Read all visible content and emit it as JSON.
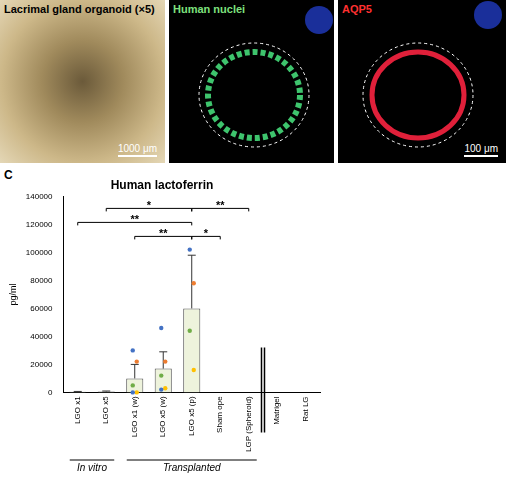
{
  "panels": [
    {
      "title": "Lacrimal gland organoid (×5)",
      "scale_bar": "1000 μm"
    },
    {
      "title": "Human nuclei"
    },
    {
      "title": "AQP5",
      "scale_bar": "100 μm"
    }
  ],
  "panel_label": "C",
  "chart_data": {
    "type": "bar",
    "title": "Human lactoferrin",
    "y_label": "pg/ml",
    "categories": [
      "LGO x1",
      "LGO x5",
      "LGO x1 (w)",
      "LGO x5 (w)",
      "LGO x5 (p)",
      "Sham ope",
      "LGP (Spheroid)",
      "Matrigel",
      "Rat LG"
    ],
    "values": [
      500,
      700,
      10000,
      17000,
      60000,
      0,
      0,
      0,
      0
    ],
    "errors": [
      200,
      300,
      10000,
      12000,
      38000,
      0,
      0,
      0,
      0
    ],
    "points": [
      [],
      [],
      [
        30000,
        22000,
        5000,
        0,
        0
      ],
      [
        46000,
        22000,
        12000,
        3000,
        2000
      ],
      [
        102000,
        78000,
        44000,
        16000
      ],
      [],
      [],
      [],
      []
    ],
    "point_colors": [
      "#4472c4",
      "#ed7d31",
      "#70ad47",
      "#ffc000"
    ],
    "groups": [
      {
        "label": "In vitro",
        "from": 0,
        "to": 1
      },
      {
        "label": "Transplanted",
        "from": 2,
        "to": 6
      }
    ],
    "separator_after": 6,
    "significance": [
      [
        {
          "from": 1,
          "to": 4,
          "label": "*"
        },
        {
          "from": 4,
          "to": 6,
          "label": "**"
        }
      ],
      [
        {
          "from": 0,
          "to": 4,
          "label": "**"
        }
      ],
      [
        {
          "from": 2,
          "to": 4,
          "label": "**"
        },
        {
          "from": 4,
          "to": 5,
          "label": "*"
        }
      ]
    ],
    "color": "#eef3dc",
    "ylim": [
      0,
      140000
    ],
    "yticks": [
      0,
      20000,
      40000,
      60000,
      80000,
      100000,
      120000,
      140000
    ],
    "grid": false
  }
}
